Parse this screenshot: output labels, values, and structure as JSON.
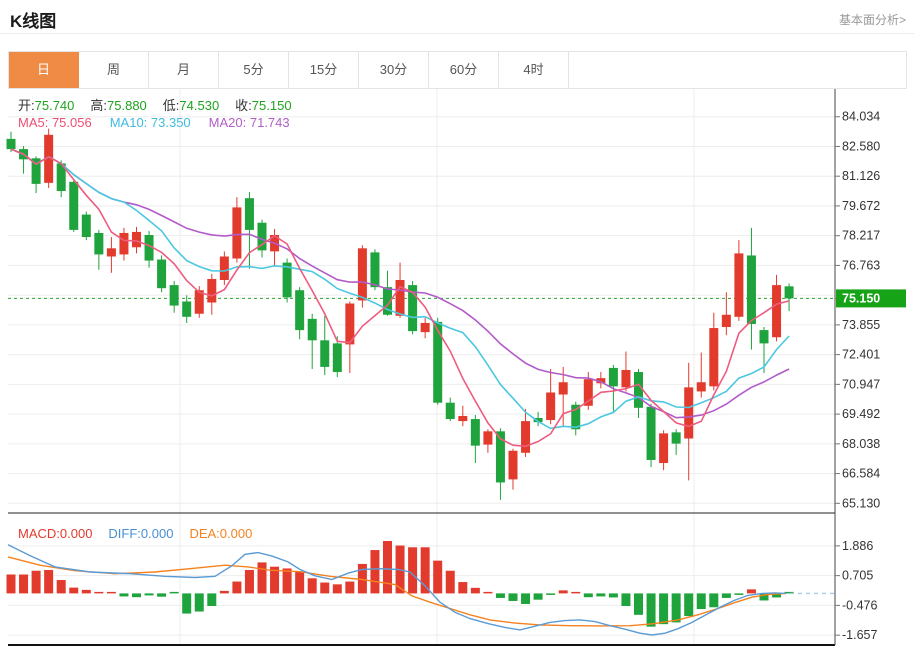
{
  "header": {
    "title": "K线图",
    "link": "基本面分析>"
  },
  "tabs": {
    "items": [
      {
        "label": "日",
        "active": true
      },
      {
        "label": "周",
        "active": false
      },
      {
        "label": "月",
        "active": false
      },
      {
        "label": "5分",
        "active": false
      },
      {
        "label": "15分",
        "active": false
      },
      {
        "label": "30分",
        "active": false
      },
      {
        "label": "60分",
        "active": false
      },
      {
        "label": "4时",
        "active": false
      }
    ]
  },
  "legend_ohlc": {
    "open_label": "开:",
    "open": "75.740",
    "high_label": "高:",
    "high": "75.880",
    "low_label": "低:",
    "low": "74.530",
    "close_label": "收:",
    "close": "75.150"
  },
  "legend_ma": {
    "ma5": "MA5: 75.056",
    "ma10": "MA10: 73.350",
    "ma20": "MA20: 71.743"
  },
  "legend_macd": {
    "macd": "MACD:0.000",
    "diff": "DIFF:0.000",
    "dea": "DEA:0.000"
  },
  "colors": {
    "up": "#e23b2e",
    "down": "#1fa33c",
    "ma5": "#ee5c80",
    "ma10": "#4cc8e0",
    "ma20": "#b25bc8",
    "diff": "#5b9bd5",
    "dea": "#f5821f",
    "price_label_bg": "#17a317",
    "price_line": "#2aa52a",
    "grid": "#ededed",
    "axis": "#444",
    "tick_text": "#333",
    "active_tab": "#ef8b45",
    "zero_dotted": "#a9cbe8"
  },
  "chart_data": [
    {
      "type": "candlestick",
      "title": "K线图",
      "period": "日",
      "current_price": 75.15,
      "current_price_label": "75.150",
      "y_ticks": [
        84.034,
        82.58,
        81.126,
        79.672,
        78.217,
        76.763,
        73.855,
        72.401,
        70.947,
        69.492,
        68.038,
        66.584,
        65.13
      ],
      "y_gridlines": [
        84.034,
        82.58,
        81.126,
        79.672,
        78.217,
        76.763,
        75.309,
        73.855,
        72.401,
        70.947,
        69.492,
        68.038,
        66.584,
        65.13
      ],
      "ylim": [
        64.4,
        84.6
      ],
      "legend": {
        "open": 75.74,
        "high": 75.88,
        "low": 74.53,
        "close": 75.15,
        "ma5": 75.056,
        "ma10": 73.35,
        "ma20": 71.743
      },
      "candles_format": [
        "open",
        "high",
        "low",
        "close"
      ],
      "candles": [
        [
          82.95,
          83.3,
          82.3,
          82.45
        ],
        [
          82.45,
          82.6,
          81.25,
          81.95
        ],
        [
          82.0,
          82.1,
          80.3,
          80.75
        ],
        [
          80.8,
          83.45,
          80.55,
          83.15
        ],
        [
          81.75,
          81.9,
          80.1,
          80.4
        ],
        [
          80.85,
          80.95,
          78.4,
          78.5
        ],
        [
          79.25,
          79.4,
          78.0,
          78.15
        ],
        [
          78.35,
          78.5,
          76.55,
          77.3
        ],
        [
          77.2,
          78.15,
          76.4,
          77.6
        ],
        [
          77.3,
          78.6,
          77.0,
          78.35
        ],
        [
          77.65,
          78.65,
          77.35,
          78.4
        ],
        [
          78.25,
          78.45,
          76.65,
          77.0
        ],
        [
          77.05,
          77.25,
          75.45,
          75.65
        ],
        [
          75.8,
          76.0,
          74.45,
          74.8
        ],
        [
          75.0,
          75.3,
          73.95,
          74.25
        ],
        [
          74.4,
          75.75,
          74.2,
          75.55
        ],
        [
          74.95,
          76.35,
          74.35,
          76.1
        ],
        [
          76.05,
          77.45,
          75.8,
          77.2
        ],
        [
          77.1,
          80.1,
          76.9,
          79.6
        ],
        [
          80.05,
          80.35,
          76.6,
          78.5
        ],
        [
          78.85,
          79.0,
          77.15,
          77.5
        ],
        [
          77.45,
          78.55,
          76.7,
          78.25
        ],
        [
          76.9,
          77.1,
          74.95,
          75.2
        ],
        [
          75.55,
          75.7,
          73.15,
          73.6
        ],
        [
          74.15,
          74.4,
          71.7,
          73.1
        ],
        [
          73.1,
          74.3,
          71.4,
          71.8
        ],
        [
          72.95,
          73.3,
          71.3,
          71.55
        ],
        [
          72.9,
          75.0,
          71.5,
          74.9
        ],
        [
          75.05,
          77.75,
          74.7,
          77.6
        ],
        [
          77.4,
          77.55,
          75.55,
          75.7
        ],
        [
          75.7,
          76.5,
          74.3,
          74.35
        ],
        [
          74.3,
          76.9,
          74.2,
          76.05
        ],
        [
          75.8,
          76.0,
          73.4,
          73.55
        ],
        [
          73.5,
          74.2,
          73.2,
          73.95
        ],
        [
          74.0,
          74.2,
          69.95,
          70.05
        ],
        [
          70.05,
          70.3,
          69.15,
          69.25
        ],
        [
          69.15,
          69.9,
          68.9,
          69.4
        ],
        [
          69.25,
          69.45,
          67.1,
          67.95
        ],
        [
          68.0,
          68.75,
          67.6,
          68.65
        ],
        [
          68.65,
          68.8,
          65.3,
          66.15
        ],
        [
          66.3,
          67.8,
          65.8,
          67.7
        ],
        [
          67.6,
          69.75,
          67.4,
          69.15
        ],
        [
          69.3,
          69.6,
          68.9,
          69.1
        ],
        [
          69.2,
          71.7,
          69.0,
          70.55
        ],
        [
          70.45,
          71.8,
          68.85,
          71.05
        ],
        [
          69.95,
          70.1,
          68.45,
          68.75
        ],
        [
          69.9,
          71.55,
          69.7,
          71.2
        ],
        [
          71.0,
          71.55,
          70.75,
          71.25
        ],
        [
          71.75,
          71.9,
          69.6,
          70.85
        ],
        [
          70.8,
          72.55,
          70.6,
          71.65
        ],
        [
          71.55,
          71.7,
          69.3,
          69.8
        ],
        [
          69.85,
          70.0,
          66.9,
          67.25
        ],
        [
          67.1,
          68.7,
          66.75,
          68.55
        ],
        [
          68.6,
          68.75,
          67.5,
          68.05
        ],
        [
          68.3,
          72.0,
          66.25,
          70.8
        ],
        [
          70.6,
          72.5,
          70.3,
          71.05
        ],
        [
          70.85,
          74.45,
          70.65,
          73.7
        ],
        [
          73.75,
          75.45,
          73.35,
          74.35
        ],
        [
          74.25,
          78.0,
          74.05,
          77.35
        ],
        [
          77.25,
          78.6,
          72.65,
          73.9
        ],
        [
          73.6,
          73.75,
          71.5,
          72.95
        ],
        [
          73.25,
          76.3,
          73.05,
          75.8
        ],
        [
          75.74,
          75.88,
          74.53,
          75.15
        ]
      ]
    },
    {
      "type": "bar",
      "name": "MACD",
      "legend": {
        "macd": 0.0,
        "diff": 0.0,
        "dea": 0.0
      },
      "y_ticks": [
        1.886,
        0.705,
        -0.476,
        -1.657
      ],
      "ylim": [
        -2.2,
        2.3
      ],
      "values": [
        0.75,
        0.75,
        0.9,
        0.93,
        0.53,
        0.23,
        0.14,
        0.06,
        0.05,
        -0.12,
        -0.15,
        -0.08,
        -0.13,
        -0.05,
        -0.8,
        -0.72,
        -0.5,
        0.1,
        0.47,
        0.93,
        1.23,
        1.06,
        0.99,
        0.86,
        0.6,
        0.43,
        0.36,
        0.47,
        1.17,
        1.72,
        2.08,
        1.9,
        1.83,
        1.83,
        1.3,
        0.9,
        0.45,
        0.22,
        0.06,
        -0.18,
        -0.3,
        -0.42,
        -0.25,
        -0.06,
        0.12,
        0.05,
        -0.15,
        -0.12,
        -0.16,
        -0.5,
        -0.85,
        -1.32,
        -1.22,
        -1.15,
        -0.9,
        -0.62,
        -0.55,
        -0.18,
        -0.06,
        0.16,
        -0.28,
        -0.16,
        -0.05
      ],
      "diff_line": [
        [
          8,
          1.93
        ],
        [
          30,
          1.5
        ],
        [
          55,
          1.05
        ],
        [
          90,
          0.85
        ],
        [
          130,
          0.78
        ],
        [
          165,
          0.68
        ],
        [
          195,
          0.63
        ],
        [
          215,
          0.68
        ],
        [
          232,
          1.1
        ],
        [
          245,
          1.55
        ],
        [
          258,
          1.62
        ],
        [
          272,
          1.48
        ],
        [
          288,
          1.25
        ],
        [
          300,
          0.95
        ],
        [
          315,
          0.7
        ],
        [
          332,
          0.55
        ],
        [
          348,
          0.8
        ],
        [
          362,
          0.95
        ],
        [
          380,
          0.98
        ],
        [
          398,
          0.95
        ],
        [
          410,
          0.85
        ],
        [
          425,
          0.3
        ],
        [
          440,
          -0.35
        ],
        [
          455,
          -0.75
        ],
        [
          470,
          -1.0
        ],
        [
          488,
          -1.2
        ],
        [
          505,
          -1.35
        ],
        [
          520,
          -1.45
        ],
        [
          535,
          -1.3
        ],
        [
          550,
          -1.15
        ],
        [
          565,
          -1.08
        ],
        [
          580,
          -1.05
        ],
        [
          595,
          -1.12
        ],
        [
          610,
          -1.28
        ],
        [
          625,
          -1.42
        ],
        [
          640,
          -1.58
        ],
        [
          652,
          -1.65
        ],
        [
          665,
          -1.58
        ],
        [
          678,
          -1.4
        ],
        [
          692,
          -1.15
        ],
        [
          706,
          -0.85
        ],
        [
          720,
          -0.55
        ],
        [
          734,
          -0.28
        ],
        [
          748,
          -0.08
        ],
        [
          762,
          0.0
        ],
        [
          775,
          0.02
        ],
        [
          786,
          0.0
        ]
      ],
      "dea_line": [
        [
          8,
          1.45
        ],
        [
          40,
          1.12
        ],
        [
          75,
          0.9
        ],
        [
          115,
          0.78
        ],
        [
          155,
          0.85
        ],
        [
          195,
          1.0
        ],
        [
          225,
          1.12
        ],
        [
          248,
          1.05
        ],
        [
          270,
          0.92
        ],
        [
          300,
          0.86
        ],
        [
          330,
          0.68
        ],
        [
          362,
          0.55
        ],
        [
          395,
          0.35
        ],
        [
          412,
          -0.1
        ],
        [
          430,
          -0.35
        ],
        [
          450,
          -0.6
        ],
        [
          470,
          -0.85
        ],
        [
          490,
          -1.05
        ],
        [
          515,
          -1.18
        ],
        [
          540,
          -1.25
        ],
        [
          570,
          -1.28
        ],
        [
          600,
          -1.29
        ],
        [
          630,
          -1.28
        ],
        [
          655,
          -1.2
        ],
        [
          678,
          -1.05
        ],
        [
          698,
          -0.85
        ],
        [
          718,
          -0.6
        ],
        [
          736,
          -0.35
        ],
        [
          752,
          -0.15
        ],
        [
          768,
          -0.04
        ],
        [
          786,
          0.0
        ]
      ]
    }
  ]
}
